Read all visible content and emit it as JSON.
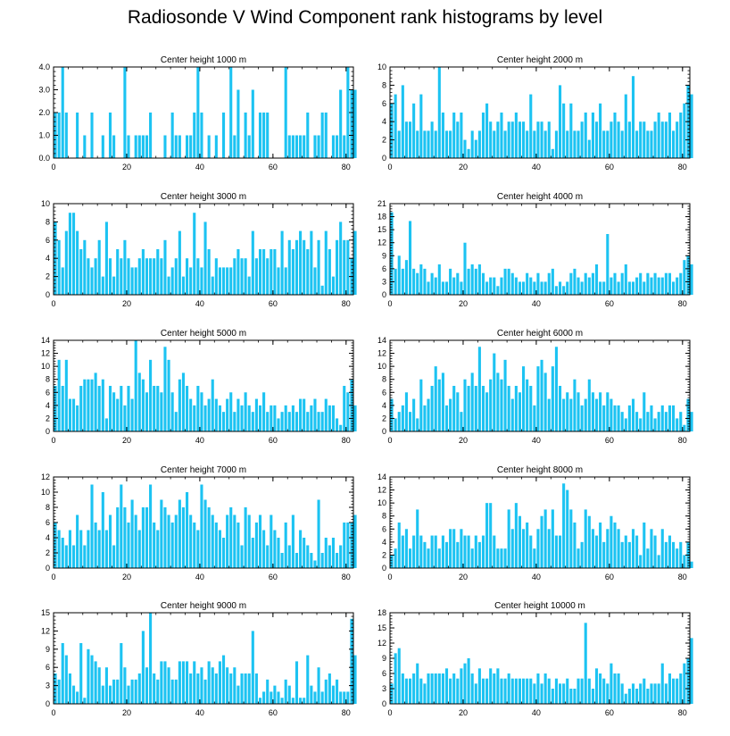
{
  "title": "Radiosonde V Wind Component rank histograms by level",
  "colors": {
    "bar": "#1cc3f2",
    "axis": "#000000",
    "background": "#ffffff"
  },
  "chart_data": [
    {
      "type": "bar",
      "title": "Center height 1000 m",
      "xlim": [
        0,
        82
      ],
      "xticks": [
        0,
        20,
        40,
        60,
        80
      ],
      "ylim": [
        0,
        4
      ],
      "yticks": [
        0,
        1,
        2,
        3,
        4
      ],
      "ytick_labels": [
        "0.0",
        "1.0",
        "2.0",
        "3.0",
        "4.0"
      ],
      "values": [
        2,
        2,
        4,
        2,
        0,
        0,
        2,
        0,
        1,
        0,
        2,
        0,
        0,
        1,
        0,
        2,
        1,
        0,
        0,
        4,
        1,
        0,
        1,
        1,
        1,
        1,
        2,
        0,
        0,
        0,
        1,
        0,
        2,
        1,
        1,
        0,
        1,
        1,
        2,
        4,
        2,
        0,
        1,
        0,
        1,
        0,
        2,
        0,
        4,
        1,
        3,
        0,
        2,
        1,
        3,
        0,
        2,
        2,
        2,
        0,
        0,
        0,
        0,
        4,
        1,
        1,
        1,
        1,
        1,
        2,
        0,
        1,
        1,
        2,
        2,
        0,
        1,
        1,
        3,
        1,
        4,
        3,
        3
      ]
    },
    {
      "type": "bar",
      "title": "Center height 2000 m",
      "xlim": [
        0,
        82
      ],
      "xticks": [
        0,
        20,
        40,
        60,
        80
      ],
      "ylim": [
        0,
        10
      ],
      "yticks": [
        0,
        2,
        4,
        6,
        8,
        10
      ],
      "ytick_labels": [
        "0",
        "2",
        "4",
        "6",
        "8",
        "10"
      ],
      "values": [
        6,
        7,
        3,
        8,
        4,
        4,
        6,
        3,
        7,
        3,
        3,
        4,
        3,
        10,
        5,
        3,
        3,
        5,
        4,
        5,
        2,
        1,
        3,
        2,
        3,
        5,
        6,
        4,
        3,
        4,
        5,
        3,
        4,
        4,
        5,
        4,
        4,
        3,
        7,
        3,
        4,
        4,
        3,
        4,
        1,
        3,
        8,
        6,
        3,
        6,
        3,
        3,
        4,
        5,
        2,
        5,
        4,
        6,
        3,
        3,
        4,
        5,
        4,
        3,
        7,
        4,
        9,
        3,
        4,
        4,
        3,
        3,
        4,
        5,
        4,
        4,
        5,
        3,
        4,
        5,
        6,
        8,
        7
      ]
    },
    {
      "type": "bar",
      "title": "Center height 3000 m",
      "xlim": [
        0,
        82
      ],
      "xticks": [
        0,
        20,
        40,
        60,
        80
      ],
      "ylim": [
        0,
        10
      ],
      "yticks": [
        0,
        2,
        4,
        6,
        8,
        10
      ],
      "ytick_labels": [
        "0",
        "2",
        "4",
        "6",
        "8",
        "10"
      ],
      "values": [
        8,
        6,
        3,
        7,
        9,
        9,
        7,
        5,
        6,
        4,
        3,
        4,
        6,
        2,
        8,
        4,
        2,
        5,
        4,
        6,
        4,
        3,
        3,
        4,
        5,
        4,
        4,
        4,
        5,
        4,
        6,
        2,
        3,
        4,
        7,
        2,
        4,
        3,
        9,
        4,
        3,
        8,
        5,
        2,
        4,
        3,
        3,
        3,
        3,
        4,
        5,
        4,
        4,
        2,
        7,
        4,
        5,
        5,
        4,
        5,
        5,
        3,
        7,
        3,
        6,
        5,
        6,
        7,
        6,
        5,
        7,
        3,
        6,
        1,
        7,
        5,
        2,
        6,
        8,
        6,
        6,
        4,
        7
      ]
    },
    {
      "type": "bar",
      "title": "Center height 4000 m",
      "xlim": [
        0,
        82
      ],
      "xticks": [
        0,
        20,
        40,
        60,
        80
      ],
      "ylim": [
        0,
        21
      ],
      "yticks": [
        0,
        3,
        6,
        9,
        12,
        15,
        18,
        21
      ],
      "ytick_labels": [
        "0",
        "3",
        "6",
        "9",
        "12",
        "15",
        "18",
        "21"
      ],
      "values": [
        19,
        6,
        9,
        6,
        8,
        17,
        6,
        5,
        7,
        6,
        3,
        5,
        4,
        7,
        3,
        3,
        6,
        4,
        5,
        3,
        12,
        6,
        7,
        6,
        7,
        5,
        3,
        4,
        4,
        2,
        4,
        6,
        6,
        5,
        4,
        3,
        3,
        5,
        4,
        3,
        5,
        3,
        3,
        5,
        6,
        2,
        3,
        2,
        3,
        5,
        6,
        4,
        3,
        5,
        4,
        5,
        7,
        3,
        3,
        14,
        4,
        5,
        3,
        5,
        7,
        3,
        3,
        4,
        5,
        3,
        5,
        4,
        5,
        4,
        4,
        5,
        5,
        3,
        4,
        5,
        8,
        9,
        7
      ]
    },
    {
      "type": "bar",
      "title": "Center height 5000 m",
      "xlim": [
        0,
        82
      ],
      "xticks": [
        0,
        20,
        40,
        60,
        80
      ],
      "ylim": [
        0,
        14
      ],
      "yticks": [
        0,
        2,
        4,
        6,
        8,
        10,
        12,
        14
      ],
      "ytick_labels": [
        "0",
        "2",
        "4",
        "6",
        "8",
        "10",
        "12",
        "14"
      ],
      "values": [
        7,
        11,
        7,
        11,
        5,
        5,
        4,
        7,
        8,
        8,
        8,
        9,
        7,
        8,
        2,
        7,
        6,
        5,
        7,
        4,
        7,
        5,
        14,
        9,
        8,
        6,
        11,
        7,
        7,
        6,
        13,
        11,
        6,
        3,
        8,
        9,
        7,
        5,
        4,
        7,
        6,
        4,
        5,
        8,
        5,
        4,
        3,
        5,
        6,
        3,
        5,
        4,
        6,
        4,
        3,
        5,
        4,
        6,
        3,
        4,
        4,
        2,
        3,
        4,
        3,
        4,
        3,
        5,
        5,
        3,
        4,
        5,
        3,
        3,
        5,
        4,
        4,
        2,
        1,
        7,
        6,
        8,
        4
      ]
    },
    {
      "type": "bar",
      "title": "Center height 6000 m",
      "xlim": [
        0,
        82
      ],
      "xticks": [
        0,
        20,
        40,
        60,
        80
      ],
      "ylim": [
        0,
        14
      ],
      "yticks": [
        0,
        2,
        4,
        6,
        8,
        10,
        12,
        14
      ],
      "ytick_labels": [
        "0",
        "2",
        "4",
        "6",
        "8",
        "10",
        "12",
        "14"
      ],
      "values": [
        5,
        2,
        3,
        4,
        6,
        3,
        5,
        2,
        8,
        4,
        5,
        7,
        10,
        8,
        9,
        4,
        5,
        7,
        6,
        3,
        8,
        7,
        9,
        7,
        13,
        7,
        6,
        8,
        12,
        9,
        8,
        11,
        7,
        5,
        7,
        6,
        10,
        8,
        7,
        4,
        10,
        11,
        9,
        5,
        10,
        13,
        7,
        5,
        6,
        5,
        8,
        6,
        4,
        5,
        8,
        6,
        5,
        6,
        4,
        6,
        5,
        4,
        4,
        3,
        2,
        4,
        5,
        3,
        2,
        6,
        3,
        4,
        2,
        3,
        4,
        3,
        4,
        4,
        2,
        3,
        1,
        5,
        3
      ]
    },
    {
      "type": "bar",
      "title": "Center height 7000 m",
      "xlim": [
        0,
        82
      ],
      "xticks": [
        0,
        20,
        40,
        60,
        80
      ],
      "ylim": [
        0,
        12
      ],
      "yticks": [
        0,
        2,
        4,
        6,
        8,
        10,
        12
      ],
      "ytick_labels": [
        "0",
        "2",
        "4",
        "6",
        "8",
        "10",
        "12"
      ],
      "values": [
        6,
        5,
        4,
        3,
        5,
        3,
        7,
        5,
        3,
        5,
        11,
        6,
        5,
        10,
        5,
        7,
        3,
        8,
        11,
        8,
        6,
        9,
        7,
        5,
        8,
        8,
        11,
        6,
        5,
        9,
        8,
        7,
        6,
        7,
        9,
        8,
        10,
        7,
        6,
        5,
        11,
        9,
        8,
        7,
        6,
        5,
        4,
        7,
        8,
        7,
        6,
        3,
        8,
        7,
        4,
        6,
        7,
        5,
        3,
        7,
        5,
        4,
        2,
        6,
        3,
        7,
        2,
        5,
        4,
        3,
        2,
        1,
        9,
        2,
        4,
        3,
        4,
        2,
        3,
        6,
        6,
        6,
        7
      ]
    },
    {
      "type": "bar",
      "title": "Center height 8000 m",
      "xlim": [
        0,
        82
      ],
      "xticks": [
        0,
        20,
        40,
        60,
        80
      ],
      "ylim": [
        0,
        14
      ],
      "yticks": [
        0,
        2,
        4,
        6,
        8,
        10,
        12,
        14
      ],
      "ytick_labels": [
        "0",
        "2",
        "4",
        "6",
        "8",
        "10",
        "12",
        "14"
      ],
      "values": [
        2,
        3,
        7,
        5,
        6,
        3,
        5,
        9,
        5,
        4,
        3,
        5,
        5,
        3,
        5,
        4,
        6,
        6,
        4,
        6,
        5,
        5,
        3,
        5,
        4,
        5,
        10,
        10,
        5,
        3,
        3,
        3,
        9,
        6,
        10,
        8,
        6,
        7,
        5,
        3,
        6,
        8,
        9,
        6,
        9,
        5,
        5,
        13,
        12,
        9,
        7,
        3,
        4,
        9,
        8,
        6,
        5,
        7,
        4,
        6,
        8,
        7,
        6,
        4,
        5,
        4,
        6,
        5,
        2,
        7,
        3,
        6,
        5,
        2,
        6,
        4,
        5,
        4,
        3,
        4,
        2,
        4,
        1
      ]
    },
    {
      "type": "bar",
      "title": "Center height 9000 m",
      "xlim": [
        0,
        82
      ],
      "xticks": [
        0,
        20,
        40,
        60,
        80
      ],
      "ylim": [
        0,
        15
      ],
      "yticks": [
        0,
        3,
        6,
        9,
        12,
        15
      ],
      "ytick_labels": [
        "0",
        "3",
        "6",
        "9",
        "12",
        "15"
      ],
      "values": [
        5,
        4,
        10,
        8,
        5,
        3,
        2,
        10,
        1,
        9,
        8,
        7,
        6,
        3,
        6,
        3,
        4,
        4,
        10,
        6,
        3,
        4,
        4,
        5,
        12,
        6,
        15,
        5,
        4,
        7,
        7,
        6,
        4,
        4,
        7,
        7,
        7,
        5,
        7,
        5,
        6,
        4,
        7,
        6,
        5,
        7,
        8,
        6,
        5,
        6,
        3,
        5,
        5,
        5,
        12,
        5,
        1,
        2,
        4,
        2,
        3,
        2,
        1,
        4,
        3,
        1,
        7,
        1,
        1,
        8,
        3,
        2,
        6,
        2,
        4,
        5,
        3,
        4,
        2,
        2,
        2,
        14,
        8
      ]
    },
    {
      "type": "bar",
      "title": "Center height 10000 m",
      "xlim": [
        0,
        82
      ],
      "xticks": [
        0,
        20,
        40,
        60,
        80
      ],
      "ylim": [
        0,
        18
      ],
      "yticks": [
        0,
        3,
        6,
        9,
        12,
        15,
        18
      ],
      "ytick_labels": [
        "0",
        "3",
        "6",
        "9",
        "12",
        "15",
        "18"
      ],
      "values": [
        4,
        10,
        11,
        6,
        5,
        5,
        6,
        8,
        5,
        4,
        6,
        6,
        6,
        6,
        6,
        7,
        5,
        6,
        5,
        7,
        8,
        9,
        6,
        4,
        7,
        5,
        5,
        7,
        6,
        7,
        5,
        5,
        6,
        5,
        5,
        5,
        5,
        5,
        5,
        4,
        6,
        4,
        6,
        5,
        3,
        5,
        4,
        4,
        5,
        3,
        3,
        5,
        5,
        16,
        5,
        3,
        7,
        6,
        5,
        4,
        8,
        6,
        6,
        4,
        2,
        3,
        4,
        3,
        4,
        5,
        3,
        4,
        4,
        4,
        8,
        4,
        6,
        5,
        5,
        6,
        8,
        9,
        13
      ]
    }
  ]
}
